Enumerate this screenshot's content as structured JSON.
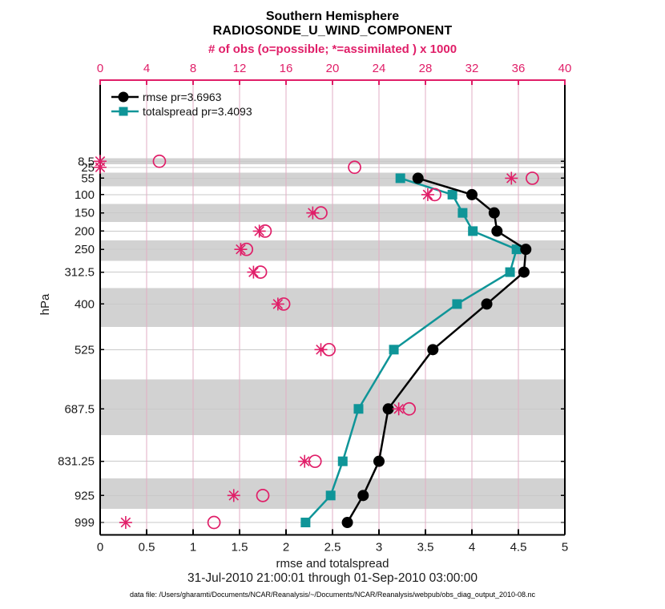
{
  "figure": {
    "title": "Southern Hemisphere",
    "subtitle": "RADIOSONDE_U_WIND_COMPONENT",
    "footer": {
      "xlabel": "rmse and totalspread",
      "date_range": "31-Jul-2010 21:00:01 through 01-Sep-2010 03:00:00",
      "data_file": "data file: /Users/gharamti/Documents/NCAR/Reanalysis/~/Documents/NCAR/Reanalysis/webpub/obs_diag_output_2010-08.nc"
    },
    "legend": [
      {
        "label": "rmse pr=3.6963",
        "color": "#000000",
        "marker": "circle"
      },
      {
        "label": "totalspread pr=3.4093",
        "color": "#0f9598",
        "marker": "square"
      }
    ]
  },
  "chart_data": {
    "type": "line",
    "title": "Southern Hemisphere",
    "subtitle": "RADIOSONDE_U_WIND_COMPONENT",
    "ylabel": "hPa",
    "y_axis": {
      "levels": [
        8.5,
        25,
        55,
        100,
        150,
        200,
        250,
        312.5,
        400,
        525,
        687.5,
        831.25,
        925,
        999
      ],
      "tick_labels": [
        "8.5",
        "25",
        "55",
        "100",
        "150",
        "200",
        "250",
        "312.5",
        "400",
        "525",
        "687.5",
        "831.25",
        "925",
        "999"
      ],
      "scale": "linear",
      "direction": "increasing-downward",
      "display_range": [
        -214,
        1033
      ]
    },
    "x_axis_bottom": {
      "label": "rmse and totalspread",
      "lim": [
        0,
        5
      ],
      "ticks": [
        0,
        0.5,
        1,
        1.5,
        2,
        2.5,
        3,
        3.5,
        4,
        4.5,
        5
      ],
      "tick_labels": [
        "0",
        "0.5",
        "1",
        "1.5",
        "2",
        "2.5",
        "3",
        "3.5",
        "4",
        "4.5",
        "5"
      ],
      "color": "#1a1a1a"
    },
    "x_axis_top": {
      "label": "# of obs (o=possible; *=assimilated ) x 1000",
      "lim": [
        0,
        40
      ],
      "ticks": [
        0,
        4,
        8,
        12,
        16,
        20,
        24,
        28,
        32,
        36,
        40
      ],
      "tick_labels": [
        "0",
        "4",
        "8",
        "12",
        "16",
        "20",
        "24",
        "28",
        "32",
        "36",
        "40"
      ],
      "color": "#e01e68"
    },
    "series": [
      {
        "name": "rmse pr=3.6963",
        "axis": "bottom",
        "color": "#000000",
        "marker": "circle",
        "levels": [
          55,
          100,
          150,
          200,
          250,
          312.5,
          400,
          525,
          687.5,
          831.25,
          925,
          999
        ],
        "values": [
          3.42,
          4.0,
          4.24,
          4.27,
          4.58,
          4.56,
          4.16,
          3.58,
          3.1,
          3.0,
          2.83,
          2.66
        ]
      },
      {
        "name": "totalspread pr=3.4093",
        "axis": "bottom",
        "color": "#0f9598",
        "marker": "square",
        "levels": [
          55,
          100,
          150,
          200,
          250,
          312.5,
          400,
          525,
          687.5,
          831.25,
          925,
          999
        ],
        "values": [
          3.23,
          3.79,
          3.9,
          4.01,
          4.48,
          4.41,
          3.84,
          3.16,
          2.78,
          2.61,
          2.48,
          2.21
        ]
      }
    ],
    "obs_counts_x1000": {
      "axis": "top",
      "color": "#e01e68",
      "marker_possible": "open-circle",
      "marker_assimilated": "asterisk",
      "levels": [
        8.5,
        25,
        55,
        100,
        150,
        200,
        250,
        312.5,
        400,
        525,
        687.5,
        831.25,
        925,
        999
      ],
      "possible": [
        5.1,
        21.9,
        37.2,
        28.8,
        19.0,
        14.2,
        12.6,
        13.8,
        15.8,
        19.7,
        26.6,
        18.5,
        14.0,
        9.8
      ],
      "assimilated": [
        0,
        0,
        35.4,
        28.2,
        18.3,
        13.7,
        12.1,
        13.2,
        15.3,
        19.0,
        25.7,
        17.6,
        11.5,
        2.2
      ]
    },
    "style": {
      "band_color": "#d2d2d2",
      "h_grid_color": "#c9c9c9",
      "v_grid_color": "#e2aec4",
      "background": "#ffffff",
      "banded_levels": "every-other-starting-at-first"
    }
  }
}
